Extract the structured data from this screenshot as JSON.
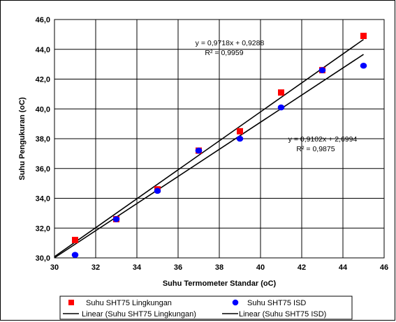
{
  "chart_data": {
    "type": "scatter",
    "title": "",
    "xlabel": "Suhu Termometer Standar (oC)",
    "ylabel": "Suhu Pengukuran (oC)",
    "xlim": [
      30,
      46
    ],
    "ylim": [
      30.0,
      46.0
    ],
    "x_ticks": [
      "30",
      "32",
      "34",
      "36",
      "38",
      "40",
      "42",
      "44",
      "46"
    ],
    "y_ticks": [
      "30,0",
      "32,0",
      "34,0",
      "36,0",
      "38,0",
      "40,0",
      "42,0",
      "44,0",
      "46,0"
    ],
    "grid": true,
    "legend_position": "bottom",
    "series": [
      {
        "name": "Suhu SHT75 Lingkungan",
        "marker": "square",
        "color": "#ff0000",
        "x": [
          31,
          33,
          35,
          37,
          39,
          41,
          43,
          45
        ],
        "y": [
          31.2,
          32.6,
          34.6,
          37.2,
          38.5,
          41.1,
          42.6,
          44.9
        ]
      },
      {
        "name": "Suhu SHT75 ISD",
        "marker": "circle",
        "color": "#0000ff",
        "x": [
          31,
          33,
          35,
          37,
          39,
          41,
          43,
          45
        ],
        "y": [
          30.2,
          32.6,
          34.5,
          37.2,
          38.0,
          40.1,
          42.6,
          42.9
        ]
      }
    ],
    "trendlines": [
      {
        "name": "Linear (Suhu SHT75 Lingkungan)",
        "color": "#000000",
        "slope": 0.9718,
        "intercept": 0.9288,
        "equation": "y = 0,9718x + 0,9288",
        "r2_label": "R² = 0,9959"
      },
      {
        "name": "Linear (Suhu SHT75 ISD)",
        "color": "#000000",
        "slope": 0.9102,
        "intercept": 2.6994,
        "equation": "y = 0,9102x + 2,6994",
        "r2_label": "R² = 0,9875"
      }
    ]
  }
}
